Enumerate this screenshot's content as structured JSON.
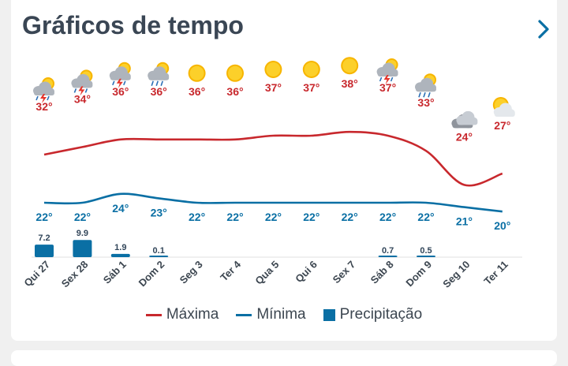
{
  "header": {
    "title": "Gráficos de tempo"
  },
  "chart_data": {
    "type": "line",
    "categories": [
      "Qui 27",
      "Sex 28",
      "Sáb 1",
      "Dom 2",
      "Seg 3",
      "Ter 4",
      "Qua 5",
      "Qui 6",
      "Sex 7",
      "Sáb 8",
      "Dom 9",
      "Seg 10",
      "Ter 11"
    ],
    "series": [
      {
        "name": "Máxima",
        "values": [
          32,
          34,
          36,
          36,
          36,
          36,
          37,
          37,
          38,
          37,
          33,
          24,
          27
        ],
        "labels": [
          "32°",
          "34°",
          "36°",
          "36°",
          "36°",
          "36°",
          "37°",
          "37°",
          "38°",
          "37°",
          "33°",
          "24°",
          "27°"
        ],
        "color": "#c8282d"
      },
      {
        "name": "Mínima",
        "values": [
          22,
          22,
          24,
          23,
          22,
          22,
          22,
          22,
          22,
          22,
          22,
          21,
          20
        ],
        "labels": [
          "22°",
          "22°",
          "24°",
          "23°",
          "22°",
          "22°",
          "22°",
          "22°",
          "22°",
          "22°",
          "22°",
          "21°",
          "20°"
        ],
        "color": "#0a6fa4"
      },
      {
        "name": "Precipitação",
        "type": "bar",
        "values": [
          7.2,
          9.9,
          1.9,
          0.1,
          0,
          0,
          0,
          0,
          0,
          0.7,
          0.5,
          0,
          0
        ],
        "labels": [
          "7.2",
          "9.9",
          "1.9",
          "0.1",
          "",
          "",
          "",
          "",
          "",
          "0.7",
          "0.5",
          "",
          ""
        ],
        "color": "#0a6fa4"
      }
    ],
    "icons": [
      "storm-cloud-sun-icon",
      "storm-cloud-sun-icon",
      "storm-cloud-sun-icon",
      "rain-cloud-sun-icon",
      "sun-icon",
      "sun-icon",
      "sun-icon",
      "sun-icon",
      "sun-icon",
      "storm-cloud-sun-icon",
      "rain-cloud-sun-icon",
      "cloud-icon",
      "sun-cloud-icon"
    ],
    "legend": "bottom-center",
    "grid": false
  },
  "legend": {
    "max_label": "Máxima",
    "min_label": "Mínima",
    "precip_label": "Precipitação"
  },
  "colors": {
    "max": "#c8282d",
    "min": "#0a6fa4",
    "precip": "#0a6fa4",
    "title": "#3a4654",
    "chevron": "#0a6fa4"
  }
}
